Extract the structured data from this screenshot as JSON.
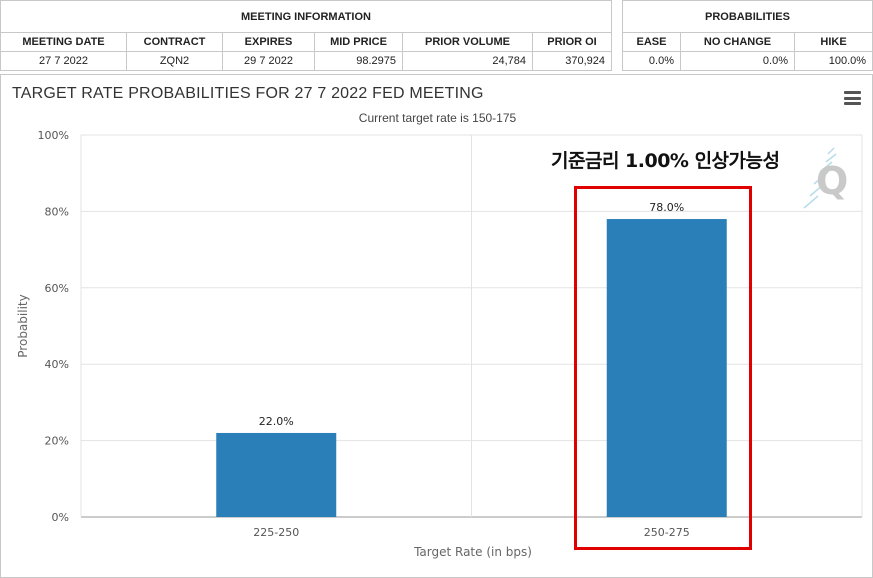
{
  "meeting_info": {
    "title": "MEETING INFORMATION",
    "headers": [
      "MEETING DATE",
      "CONTRACT",
      "EXPIRES",
      "MID PRICE",
      "PRIOR VOLUME",
      "PRIOR OI"
    ],
    "row": [
      "27 7 2022",
      "ZQN2",
      "29 7 2022",
      "98.2975",
      "24,784",
      "370,924"
    ]
  },
  "probabilities": {
    "title": "PROBABILITIES",
    "headers": [
      "EASE",
      "NO CHANGE",
      "HIKE"
    ],
    "row": [
      "0.0%",
      "0.0%",
      "100.0%"
    ]
  },
  "chart_data": {
    "type": "bar",
    "title": "TARGET RATE PROBABILITIES FOR 27 7 2022 FED MEETING",
    "subtitle": "Current target rate is 150-175",
    "xlabel": "Target Rate (in bps)",
    "ylabel": "Probability",
    "categories": [
      "225-250",
      "250-275"
    ],
    "values": [
      22.0,
      78.0
    ],
    "data_labels": [
      "22.0%",
      "78.0%"
    ],
    "ylim": [
      0,
      100
    ],
    "yticks": [
      "0%",
      "20%",
      "40%",
      "60%",
      "80%",
      "100%"
    ],
    "ytick_values": [
      0,
      20,
      40,
      60,
      80,
      100
    ],
    "bar_color": "#2b7fb8",
    "grid": true,
    "legend": "none"
  },
  "annotation": {
    "text": "기준금리 1.00% 인상가능성",
    "highlight_color": "#e00000",
    "highlighted_category": "250-275"
  },
  "menu_icon": "hamburger-menu-icon"
}
